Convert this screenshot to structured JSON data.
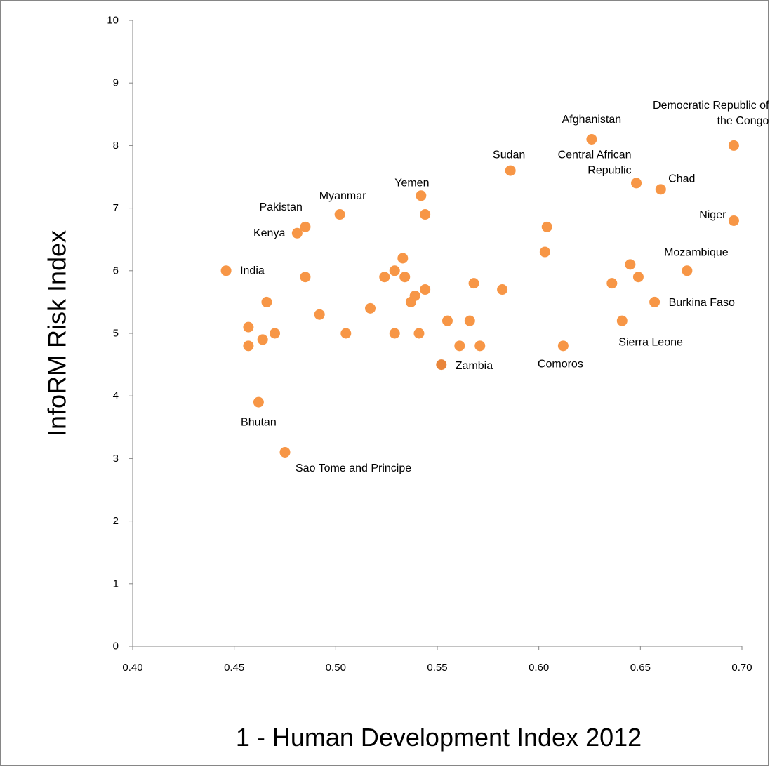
{
  "chart_data": {
    "type": "scatter",
    "title": "",
    "xlabel": "1 - Human Development Index 2012",
    "ylabel": "InfoRM Risk Index",
    "xlim": [
      0.4,
      0.7
    ],
    "ylim": [
      0,
      10
    ],
    "x_ticks": [
      "0.40",
      "0.45",
      "0.50",
      "0.55",
      "0.60",
      "0.65",
      "0.70"
    ],
    "y_ticks": [
      "0",
      "1",
      "2",
      "3",
      "4",
      "5",
      "6",
      "7",
      "8",
      "9",
      "10"
    ],
    "grid": false,
    "legend": "none",
    "marker_color": "#F79646",
    "highlight_color": "#E9853A",
    "points": [
      {
        "x": 0.446,
        "y": 6.0,
        "label": "India"
      },
      {
        "x": 0.457,
        "y": 5.1
      },
      {
        "x": 0.457,
        "y": 4.8
      },
      {
        "x": 0.462,
        "y": 3.9,
        "label": "Bhutan"
      },
      {
        "x": 0.464,
        "y": 4.9
      },
      {
        "x": 0.466,
        "y": 5.5
      },
      {
        "x": 0.47,
        "y": 5.0
      },
      {
        "x": 0.475,
        "y": 3.1,
        "label": "Sao Tome and Principe"
      },
      {
        "x": 0.481,
        "y": 6.6,
        "label": "Kenya"
      },
      {
        "x": 0.485,
        "y": 6.7,
        "label": "Pakistan"
      },
      {
        "x": 0.485,
        "y": 5.9
      },
      {
        "x": 0.492,
        "y": 5.3
      },
      {
        "x": 0.502,
        "y": 6.9,
        "label": "Myanmar"
      },
      {
        "x": 0.505,
        "y": 5.0
      },
      {
        "x": 0.517,
        "y": 5.4
      },
      {
        "x": 0.524,
        "y": 5.9
      },
      {
        "x": 0.529,
        "y": 6.0
      },
      {
        "x": 0.529,
        "y": 5.0
      },
      {
        "x": 0.533,
        "y": 6.2
      },
      {
        "x": 0.534,
        "y": 5.9
      },
      {
        "x": 0.537,
        "y": 5.5
      },
      {
        "x": 0.539,
        "y": 5.6
      },
      {
        "x": 0.541,
        "y": 5.0
      },
      {
        "x": 0.542,
        "y": 7.2,
        "label": "Yemen"
      },
      {
        "x": 0.544,
        "y": 6.9
      },
      {
        "x": 0.544,
        "y": 5.7
      },
      {
        "x": 0.552,
        "y": 4.5,
        "label": "Zambia",
        "highlight": true
      },
      {
        "x": 0.555,
        "y": 5.2
      },
      {
        "x": 0.561,
        "y": 4.8
      },
      {
        "x": 0.566,
        "y": 5.2
      },
      {
        "x": 0.568,
        "y": 5.8
      },
      {
        "x": 0.571,
        "y": 4.8
      },
      {
        "x": 0.582,
        "y": 5.7
      },
      {
        "x": 0.586,
        "y": 7.6,
        "label": "Sudan"
      },
      {
        "x": 0.603,
        "y": 6.3
      },
      {
        "x": 0.604,
        "y": 6.7
      },
      {
        "x": 0.612,
        "y": 4.8,
        "label": "Comoros"
      },
      {
        "x": 0.626,
        "y": 8.1,
        "label": "Afghanistan"
      },
      {
        "x": 0.636,
        "y": 5.8
      },
      {
        "x": 0.641,
        "y": 5.2,
        "label": "Sierra Leone"
      },
      {
        "x": 0.645,
        "y": 6.1
      },
      {
        "x": 0.648,
        "y": 7.4,
        "label": "Central African Republic",
        "label_lines": [
          "Central African",
          "Republic"
        ]
      },
      {
        "x": 0.649,
        "y": 5.9
      },
      {
        "x": 0.657,
        "y": 5.5,
        "label": "Burkina Faso"
      },
      {
        "x": 0.66,
        "y": 7.3,
        "label": "Chad"
      },
      {
        "x": 0.673,
        "y": 6.0,
        "label": "Mozambique"
      },
      {
        "x": 0.696,
        "y": 8.0,
        "label": "Democratic Republic of the Congo",
        "label_lines": [
          "Democratic Republic of",
          "the Congo"
        ]
      },
      {
        "x": 0.696,
        "y": 6.8,
        "label": "Niger"
      }
    ]
  }
}
